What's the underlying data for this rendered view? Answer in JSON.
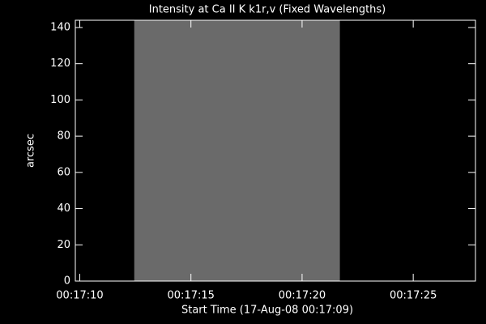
{
  "chart_data": {
    "type": "image",
    "title": "Intensity at Ca II K k1r,v (Fixed Wavelengths)",
    "x_label": "Start Time (17-Aug-08 00:17:09)",
    "y_label": "arcsec",
    "extent": {
      "x": [
        12.45,
        21.7
      ],
      "y": [
        0,
        144
      ]
    },
    "color": "#6a6a6a",
    "xlim": [
      9.8,
      27.8
    ],
    "ylim": [
      0,
      144
    ],
    "xticks": [
      {
        "value": 10,
        "label": "00:17:10"
      },
      {
        "value": 15,
        "label": "00:17:15"
      },
      {
        "value": 20,
        "label": "00:17:20"
      },
      {
        "value": 25,
        "label": "00:17:25"
      }
    ],
    "yticks": [
      0,
      20,
      40,
      60,
      80,
      100,
      120,
      140
    ]
  }
}
